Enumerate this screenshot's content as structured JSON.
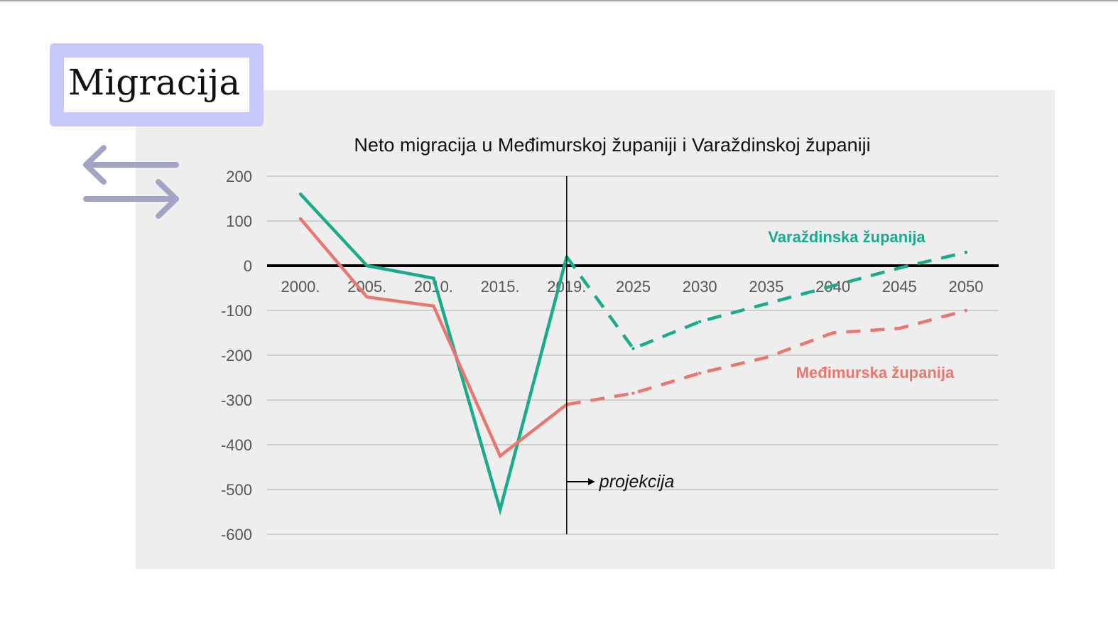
{
  "page": {
    "heading": "Migracija",
    "arrow_icon": "exchange-arrows-icon"
  },
  "colors": {
    "varazdinska": "#1aaa8c",
    "medimurska": "#e8776f",
    "heading_box": "#c8c8fb",
    "chart_background": "#eeeeee",
    "arrows": "#a3a3c6"
  },
  "chart_data": {
    "type": "line",
    "title": "Neto migracija u Međimurskoj županiji i Varaždinskoj županiji",
    "xlabel": "",
    "ylabel": "",
    "categories": [
      "2000.",
      "2005.",
      "2010.",
      "2015.",
      "2019.",
      "2025",
      "2030",
      "2035",
      "2040",
      "2045",
      "2050"
    ],
    "ylim": [
      -600,
      200
    ],
    "yticks": [
      200,
      100,
      0,
      -100,
      -200,
      -300,
      -400,
      -500,
      -600
    ],
    "grid": true,
    "projection_start": "2019.",
    "projection_label": "projekcija",
    "series": [
      {
        "name": "Varaždinska županija",
        "color": "#1aaa8c",
        "values": [
          160,
          0,
          -28,
          -545,
          20,
          -185,
          -125,
          -85,
          -45,
          -5,
          30
        ]
      },
      {
        "name": "Međimurska županija",
        "color": "#e8776f",
        "values": [
          105,
          -70,
          -90,
          -425,
          -310,
          -285,
          -240,
          -205,
          -150,
          -140,
          -100
        ]
      }
    ]
  }
}
